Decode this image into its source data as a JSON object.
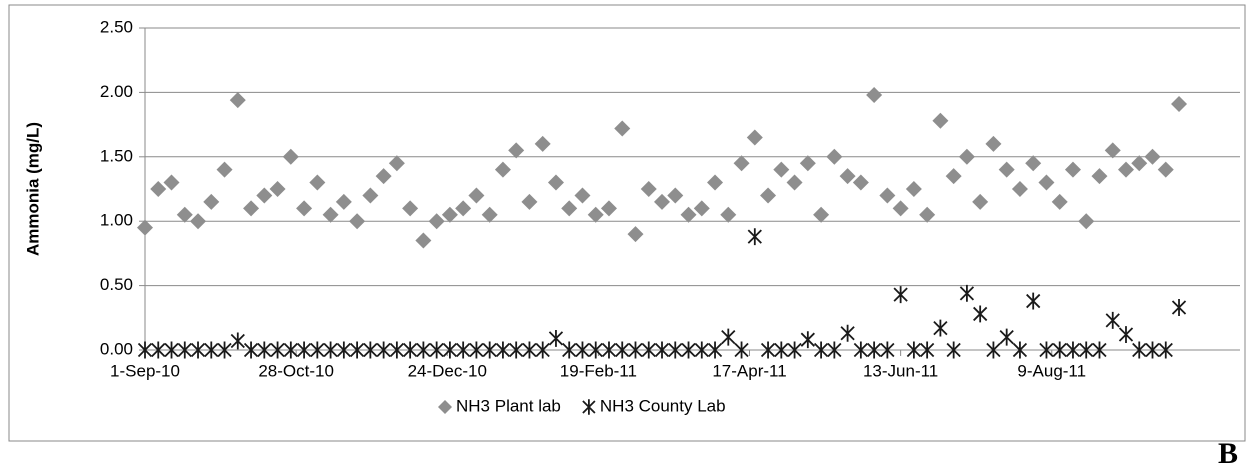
{
  "chart_data": {
    "type": "scatter",
    "y_label": "Ammonia (mg/L)",
    "annotation": "B",
    "legend": "bottom",
    "grid": true,
    "x": [
      "2010-09-01",
      "2010-09-06",
      "2010-09-11",
      "2010-09-16",
      "2010-09-21",
      "2010-09-26",
      "2010-10-01",
      "2010-10-06",
      "2010-10-11",
      "2010-10-16",
      "2010-10-21",
      "2010-10-26",
      "2010-10-31",
      "2010-11-05",
      "2010-11-10",
      "2010-11-15",
      "2010-11-20",
      "2010-11-25",
      "2010-11-30",
      "2010-12-05",
      "2010-12-10",
      "2010-12-15",
      "2010-12-20",
      "2010-12-25",
      "2010-12-30",
      "2011-01-04",
      "2011-01-09",
      "2011-01-14",
      "2011-01-19",
      "2011-01-24",
      "2011-01-29",
      "2011-02-03",
      "2011-02-08",
      "2011-02-13",
      "2011-02-18",
      "2011-02-23",
      "2011-02-28",
      "2011-03-05",
      "2011-03-10",
      "2011-03-15",
      "2011-03-20",
      "2011-03-25",
      "2011-03-30",
      "2011-04-04",
      "2011-04-09",
      "2011-04-14",
      "2011-04-19",
      "2011-04-24",
      "2011-04-29",
      "2011-05-04",
      "2011-05-09",
      "2011-05-14",
      "2011-05-19",
      "2011-05-24",
      "2011-05-29",
      "2011-06-03",
      "2011-06-08",
      "2011-06-13",
      "2011-06-18",
      "2011-06-23",
      "2011-06-28",
      "2011-07-03",
      "2011-07-08",
      "2011-07-13",
      "2011-07-18",
      "2011-07-23",
      "2011-07-28",
      "2011-08-02",
      "2011-08-07",
      "2011-08-12",
      "2011-08-17",
      "2011-08-22",
      "2011-08-27",
      "2011-09-01",
      "2011-09-06",
      "2011-09-11",
      "2011-09-16",
      "2011-09-21",
      "2011-09-26"
    ],
    "series": [
      {
        "name": "NH3 Plant lab",
        "marker": "diamond",
        "color": "#8e8e8e",
        "values": [
          0.95,
          1.25,
          1.3,
          1.05,
          1.0,
          1.15,
          1.4,
          1.94,
          1.1,
          1.2,
          1.25,
          1.5,
          1.1,
          1.3,
          1.05,
          1.15,
          1.0,
          1.2,
          1.35,
          1.45,
          1.1,
          0.85,
          1.0,
          1.05,
          1.1,
          1.2,
          1.05,
          1.4,
          1.55,
          1.15,
          1.6,
          1.3,
          1.1,
          1.2,
          1.05,
          1.1,
          1.72,
          0.9,
          1.25,
          1.15,
          1.2,
          1.05,
          1.1,
          1.3,
          1.05,
          1.45,
          1.65,
          1.2,
          1.4,
          1.3,
          1.45,
          1.05,
          1.5,
          1.35,
          1.3,
          1.98,
          1.2,
          1.1,
          1.25,
          1.05,
          1.78,
          1.35,
          1.5,
          1.15,
          1.6,
          1.4,
          1.25,
          1.45,
          1.3,
          1.15,
          1.4,
          1.0,
          1.35,
          1.55,
          1.4,
          1.45,
          1.5,
          1.4,
          1.91
        ]
      },
      {
        "name": "NH3 County Lab",
        "marker": "star",
        "color": "#1a1a1a",
        "values": [
          0,
          0,
          0,
          0,
          0,
          0,
          0,
          0.07,
          0,
          0,
          0,
          0,
          0,
          0,
          0,
          0,
          0,
          0,
          0,
          0,
          0,
          0,
          0,
          0,
          0,
          0,
          0,
          0,
          0,
          0,
          0,
          0.09,
          0,
          0,
          0,
          0,
          0,
          0,
          0,
          0,
          0,
          0,
          0,
          0,
          0.1,
          0,
          0.88,
          0,
          0,
          0,
          0.08,
          0,
          0,
          0.13,
          0,
          0,
          0,
          0.43,
          0,
          0,
          0.17,
          0,
          0.44,
          0.28,
          0,
          0.1,
          0,
          0.38,
          0,
          0,
          0,
          0,
          0,
          0.23,
          0.12,
          0,
          0,
          0,
          0.33
        ]
      }
    ],
    "xlim": [
      "2010-09-01",
      "2011-10-19"
    ],
    "xticks": [
      {
        "value": "2010-09-01",
        "label": "1-Sep-10"
      },
      {
        "value": "2010-10-28",
        "label": "28-Oct-10"
      },
      {
        "value": "2010-12-24",
        "label": "24-Dec-10"
      },
      {
        "value": "2011-02-19",
        "label": "19-Feb-11"
      },
      {
        "value": "2011-04-17",
        "label": "17-Apr-11"
      },
      {
        "value": "2011-06-13",
        "label": "13-Jun-11"
      },
      {
        "value": "2011-08-09",
        "label": "9-Aug-11"
      }
    ],
    "ylim": [
      0,
      2.5
    ],
    "yticks": [
      {
        "value": 0,
        "label": "0.00"
      },
      {
        "value": 0.5,
        "label": "0.50"
      },
      {
        "value": 1,
        "label": "1.00"
      },
      {
        "value": 1.5,
        "label": "1.50"
      },
      {
        "value": 2,
        "label": "2.00"
      },
      {
        "value": 2.5,
        "label": "2.50"
      }
    ]
  }
}
